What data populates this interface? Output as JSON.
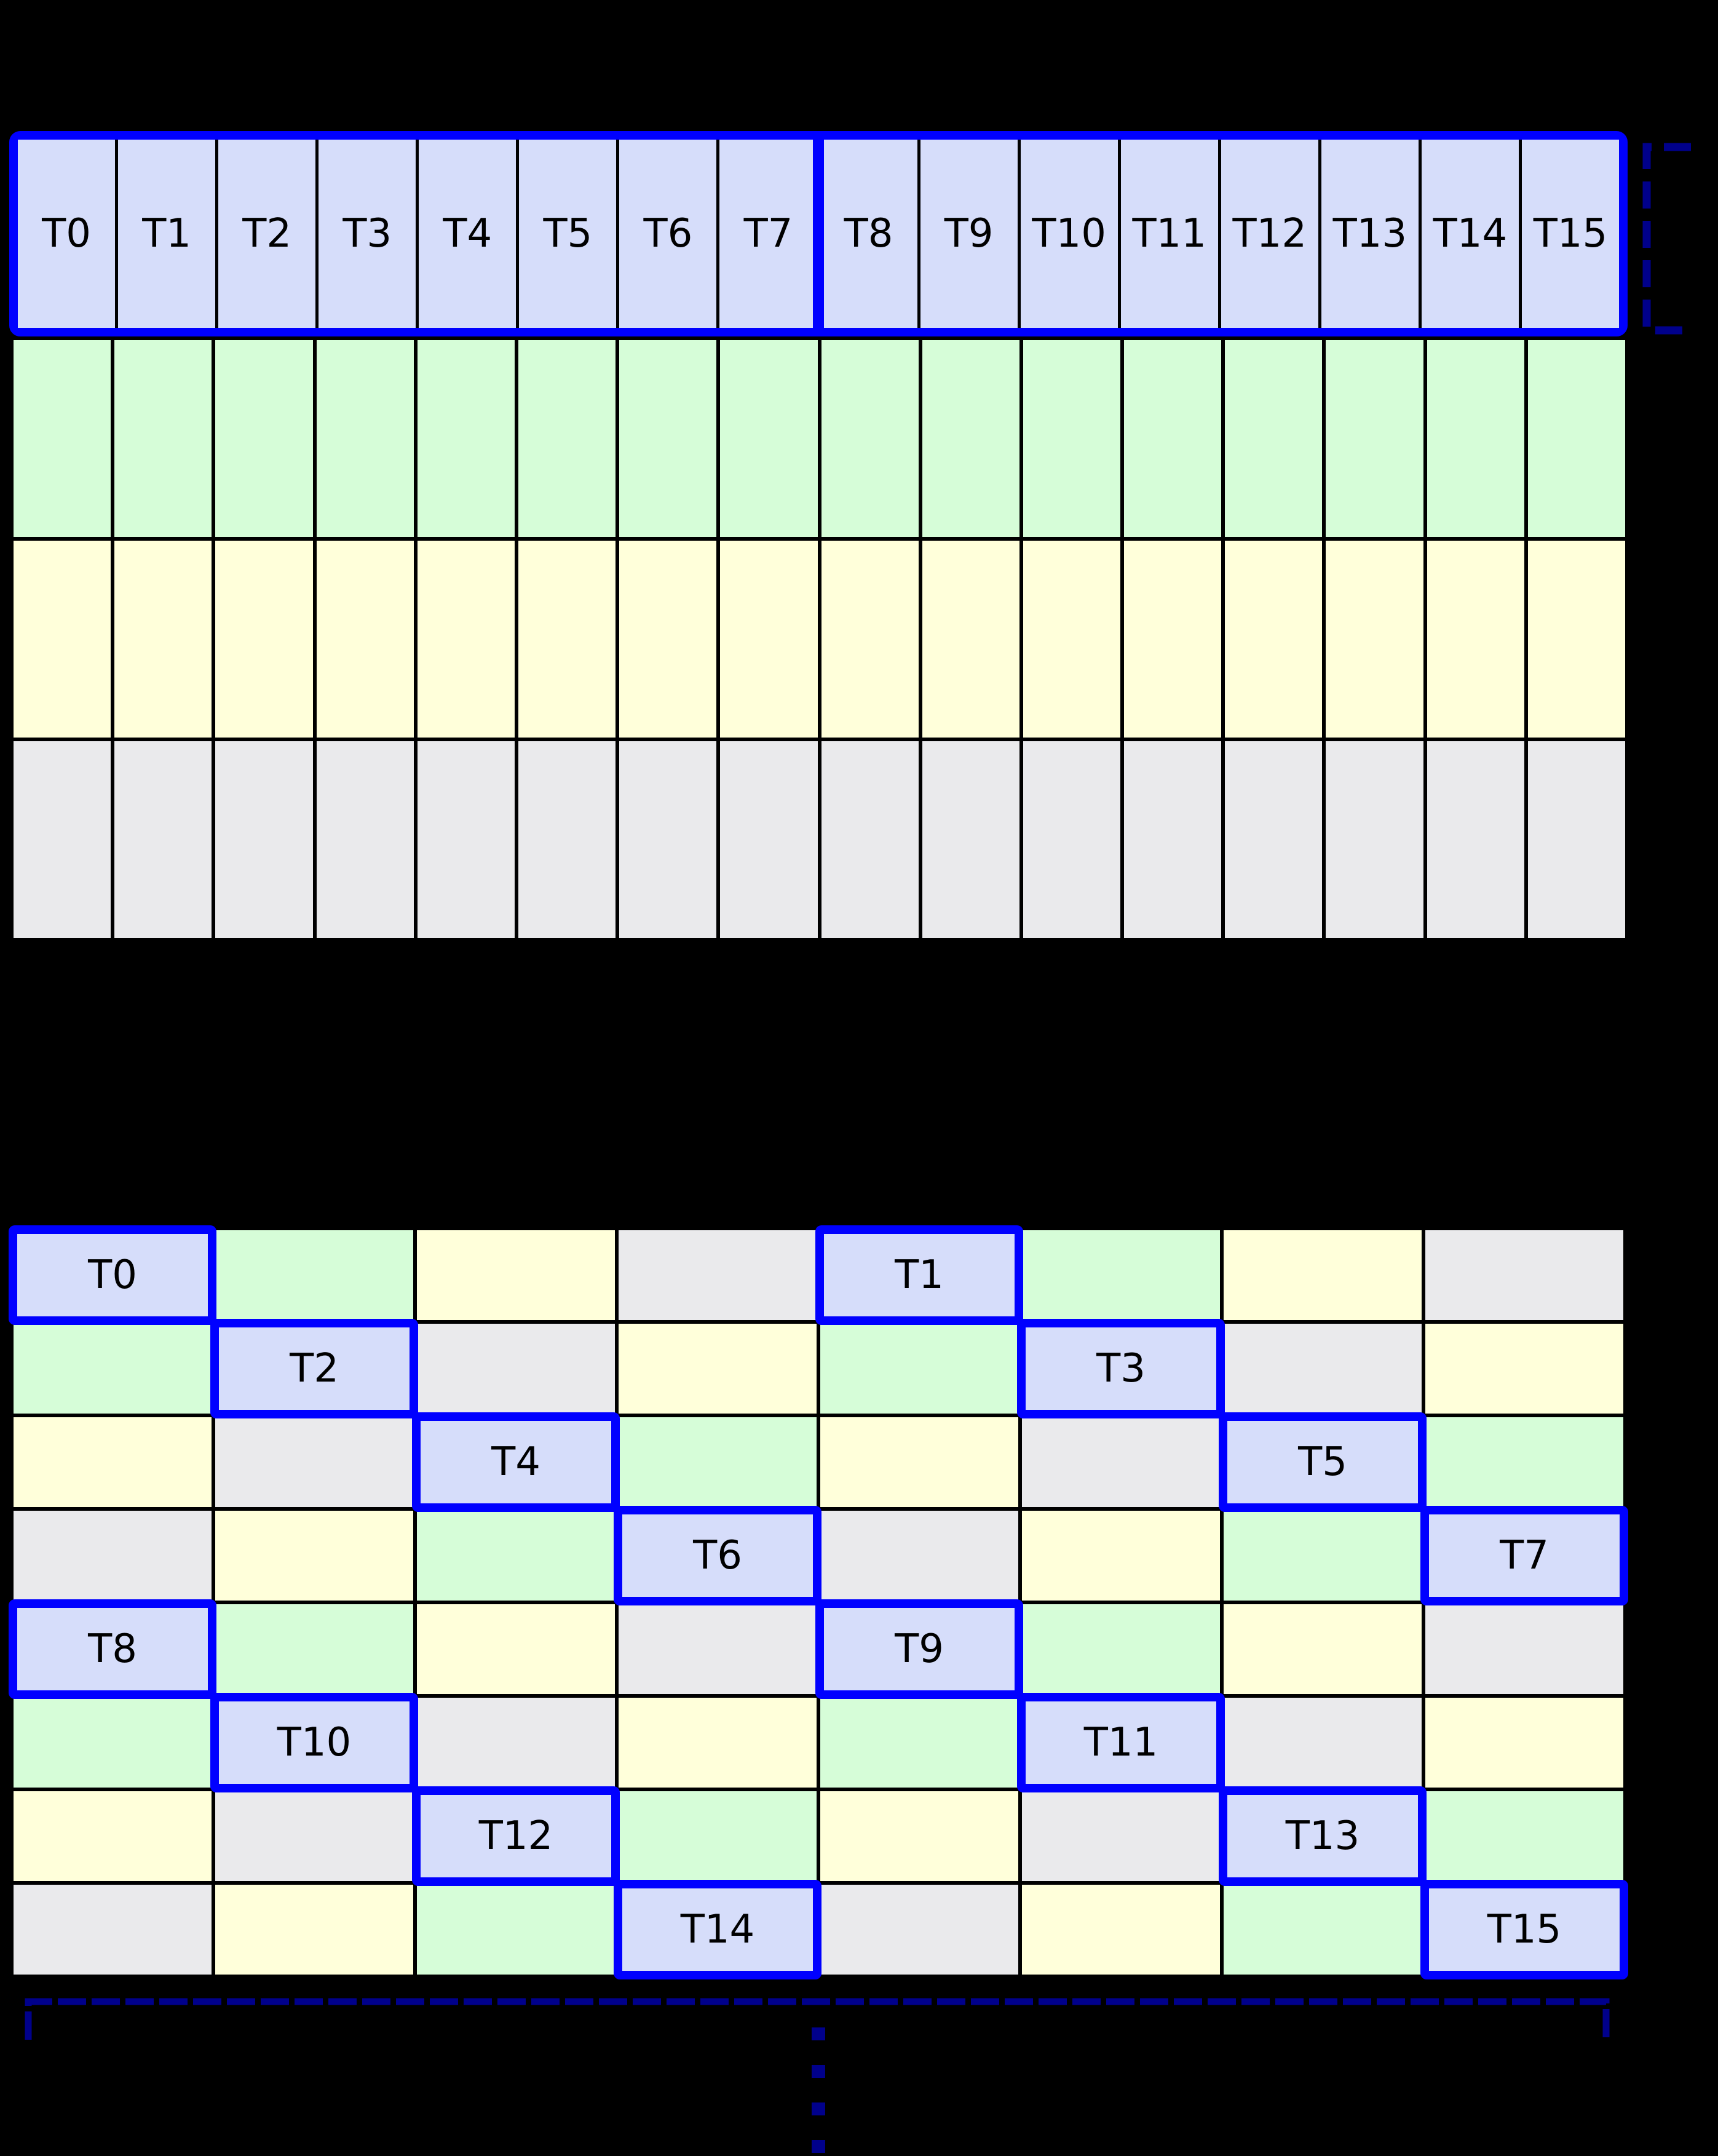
{
  "colors": {
    "background": "#000000",
    "grid_line": "#000000",
    "thread_fill": "#d6ddfa",
    "green": "#d6fdd8",
    "yellow": "#ffffda",
    "gray": "#eaeaec",
    "highlight_border": "#0000ff",
    "bracket": "#00008b",
    "label_text": "#000000"
  },
  "table1": {
    "columns": 16,
    "threads": [
      "T0",
      "T1",
      "T2",
      "T3",
      "T4",
      "T5",
      "T6",
      "T7",
      "T8",
      "T9",
      "T10",
      "T11",
      "T12",
      "T13",
      "T14",
      "T15"
    ],
    "thread_groups": [
      [
        "T0",
        "T7"
      ],
      [
        "T8",
        "T15"
      ]
    ],
    "memory_rows": [
      "green",
      "yellow",
      "gray"
    ]
  },
  "table2": {
    "columns": 8,
    "rows": [
      [
        "T0",
        "green",
        "yellow",
        "gray",
        "T1",
        "green",
        "yellow",
        "gray"
      ],
      [
        "green",
        "T2",
        "gray",
        "yellow",
        "green",
        "T3",
        "gray",
        "yellow"
      ],
      [
        "yellow",
        "gray",
        "T4",
        "green",
        "yellow",
        "gray",
        "T5",
        "green"
      ],
      [
        "gray",
        "yellow",
        "green",
        "T6",
        "gray",
        "yellow",
        "green",
        "T7"
      ],
      [
        "T8",
        "green",
        "yellow",
        "gray",
        "T9",
        "green",
        "yellow",
        "gray"
      ],
      [
        "green",
        "T10",
        "gray",
        "yellow",
        "green",
        "T11",
        "gray",
        "yellow"
      ],
      [
        "yellow",
        "gray",
        "T12",
        "green",
        "yellow",
        "gray",
        "T13",
        "green"
      ],
      [
        "gray",
        "yellow",
        "green",
        "T14",
        "gray",
        "yellow",
        "green",
        "T15"
      ]
    ]
  }
}
